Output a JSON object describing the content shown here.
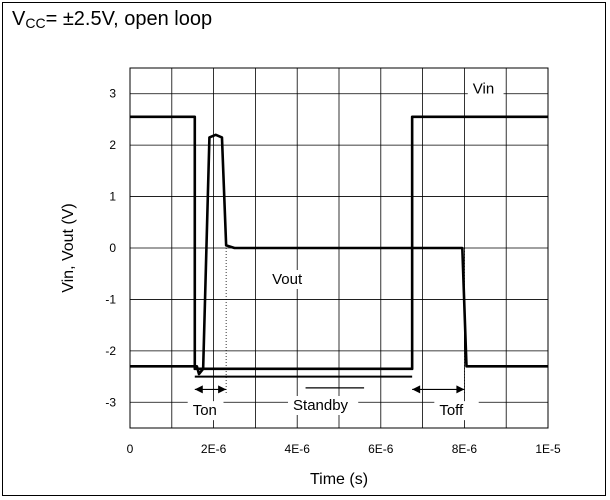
{
  "condition": {
    "prefix": "V",
    "subscript": "CC",
    "suffix": "= ±2.5V, open loop"
  },
  "chart_data": {
    "type": "line",
    "title": "",
    "xlabel": "Time (s)",
    "ylabel": "Vin, Vout (V)",
    "xlim": [
      0,
      1e-05
    ],
    "ylim": [
      -3.5,
      3.5
    ],
    "grid": true,
    "x_ticks": [
      0,
      2e-06,
      4e-06,
      6e-06,
      8e-06,
      1e-05
    ],
    "x_tick_labels": [
      "0",
      "2E-6",
      "4E-6",
      "6E-6",
      "8E-6",
      "1E-5"
    ],
    "y_ticks": [
      3,
      2,
      1,
      0,
      -1,
      -2,
      -3
    ],
    "y_tick_labels": [
      "3",
      "2",
      "1",
      "0",
      "-1",
      "-2",
      "-3"
    ],
    "series": [
      {
        "name": "Vin",
        "x": [
          0,
          1.55e-06,
          1.55e-06,
          6.75e-06,
          6.75e-06,
          1e-05
        ],
        "y": [
          2.55,
          2.55,
          -2.35,
          -2.35,
          2.55,
          2.55
        ]
      },
      {
        "name": "Vout",
        "x": [
          0,
          1.6e-06,
          1.65e-06,
          1.75e-06,
          1.9e-06,
          2.05e-06,
          2.2e-06,
          2.3e-06,
          2.5e-06,
          6.75e-06,
          7.95e-06,
          8.05e-06,
          1e-05
        ],
        "y": [
          -2.3,
          -2.3,
          -2.45,
          -2.35,
          2.15,
          2.2,
          2.15,
          0.05,
          0,
          0,
          0,
          -2.3,
          -2.3
        ]
      },
      {
        "name": "Standby",
        "x": [
          1.55e-06,
          6.75e-06
        ],
        "y": [
          -2.5,
          -2.5
        ]
      }
    ],
    "annotations": [
      {
        "text": "Vin",
        "x": 8.2e-06,
        "y": 3.0
      },
      {
        "text": "Vout",
        "x": 3.4e-06,
        "y": -0.7
      },
      {
        "text": "Ton",
        "x": 1.5e-06,
        "y": -3.25
      },
      {
        "text": "Standby",
        "x": 3.9e-06,
        "y": -3.15
      },
      {
        "text": "Toff",
        "x": 7.4e-06,
        "y": -3.25
      }
    ],
    "markers": {
      "ton": [
        1.55e-06,
        2.3e-06
      ],
      "toff": [
        6.75e-06,
        8e-06
      ],
      "standby_bar": [
        4.2e-06,
        5.6e-06
      ]
    }
  }
}
